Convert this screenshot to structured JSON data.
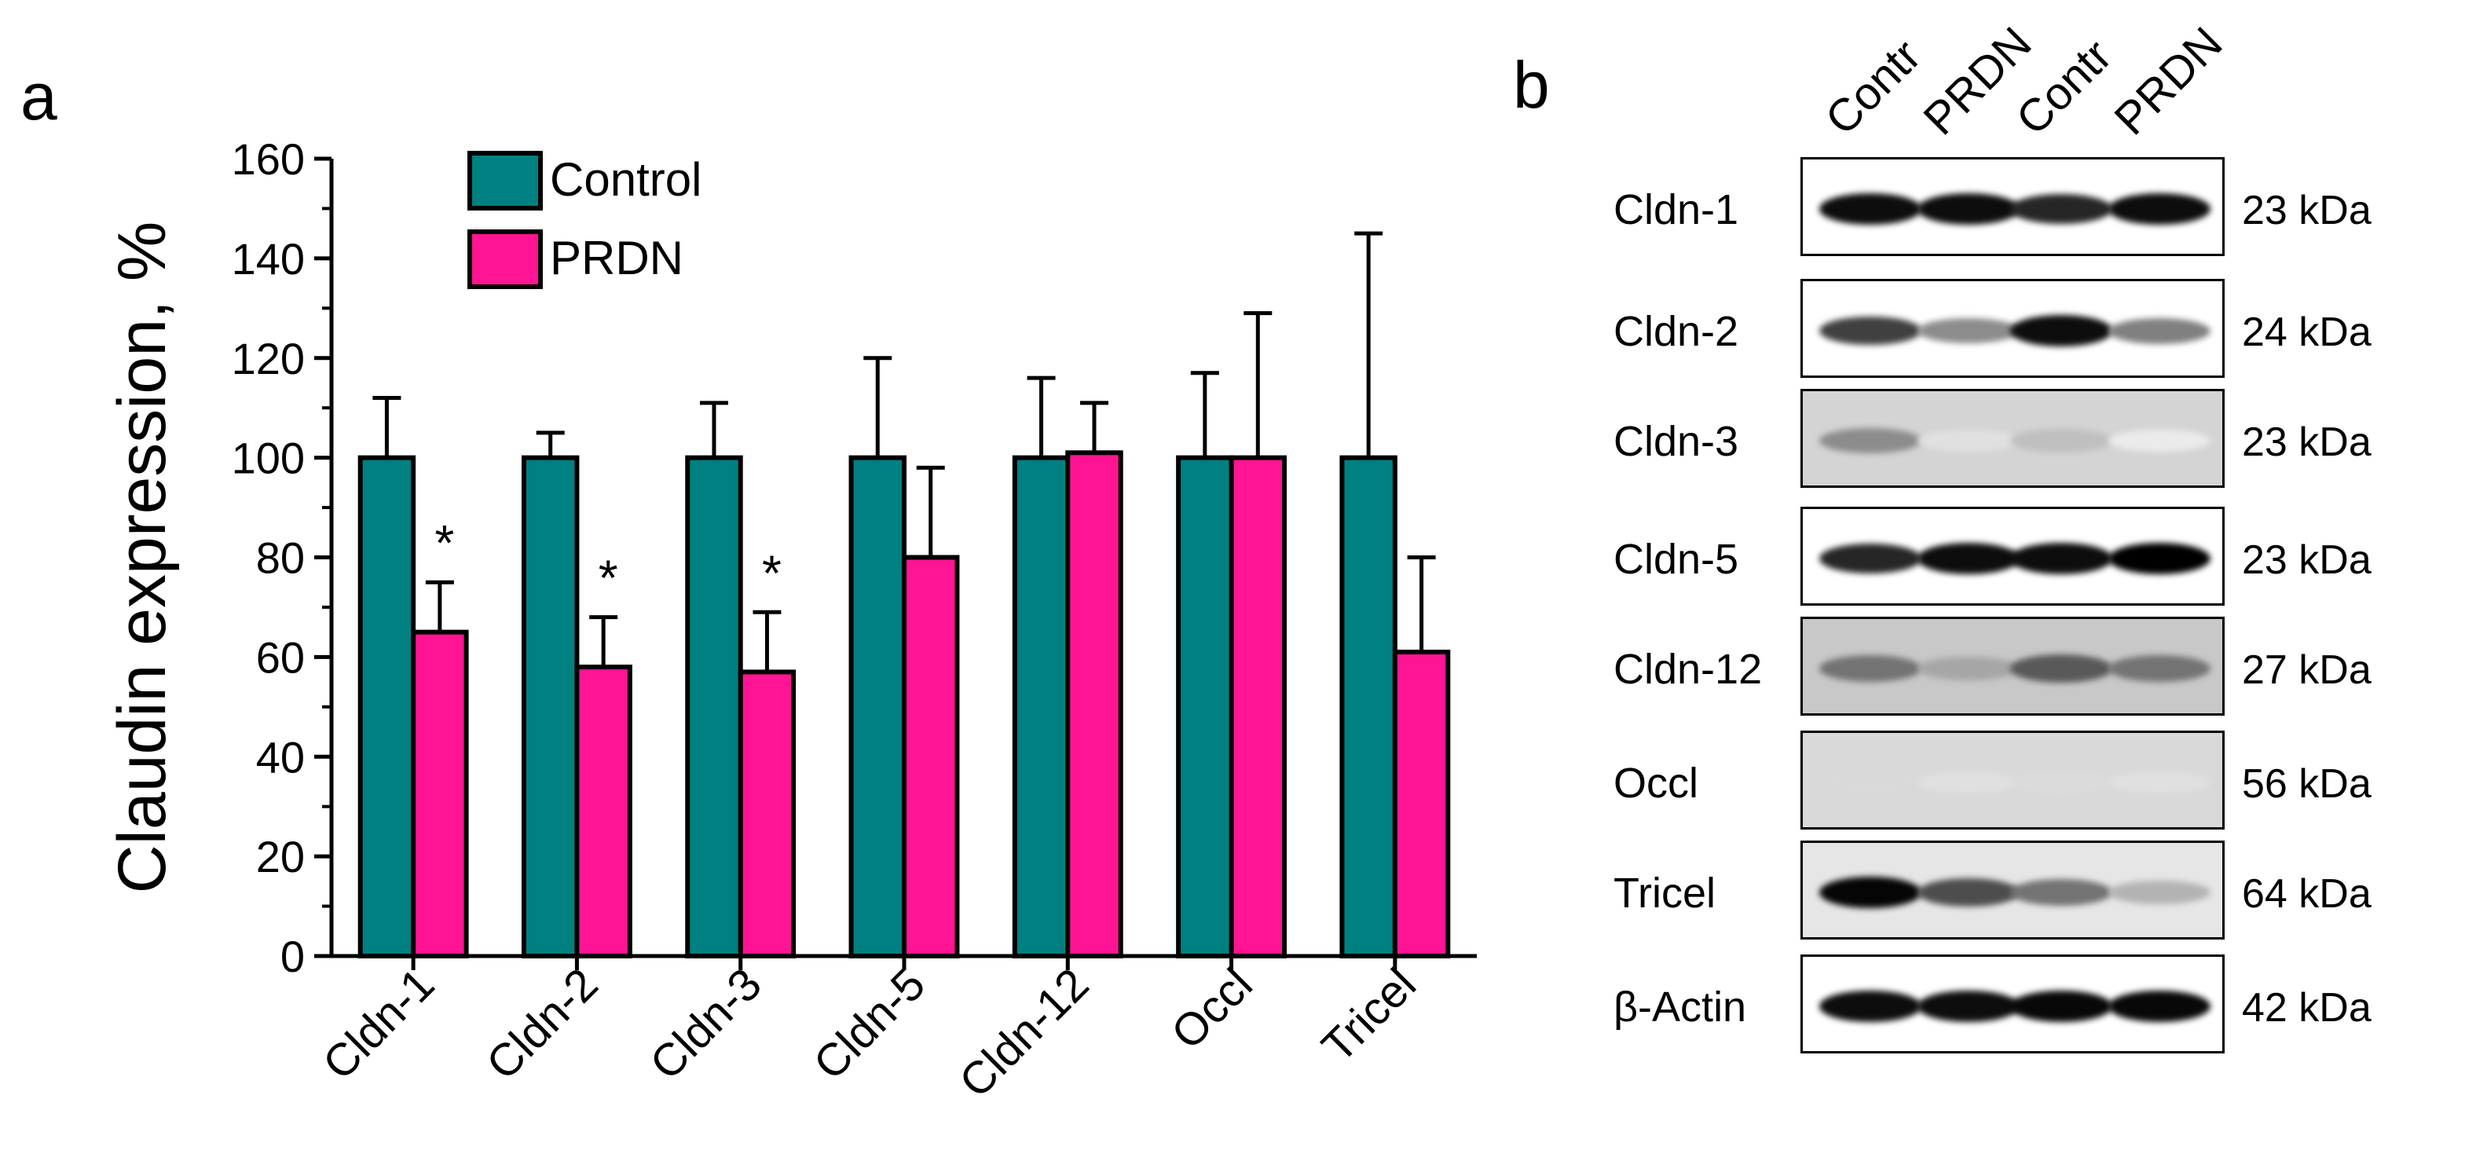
{
  "panel_a": {
    "letter": "a"
  },
  "panel_b": {
    "letter": "b"
  },
  "chart_data": {
    "type": "bar",
    "title": "",
    "xlabel": "",
    "ylabel": "Claudin expression, %",
    "ylim": [
      0,
      160
    ],
    "yticks": [
      0,
      20,
      40,
      60,
      80,
      100,
      120,
      140,
      160
    ],
    "grid": false,
    "legend_position": "top-left",
    "categories": [
      "Cldn-1",
      "Cldn-2",
      "Cldn-3",
      "Cldn-5",
      "Cldn-12",
      "Occl",
      "Tricel"
    ],
    "series": [
      {
        "name": "Control",
        "color": "#008080",
        "values": [
          100,
          100,
          100,
          100,
          100,
          100,
          100
        ],
        "errors": [
          12,
          5,
          11,
          20,
          16,
          17,
          45
        ]
      },
      {
        "name": "PRDN",
        "color": "#ff1493",
        "values": [
          65,
          58,
          57,
          80,
          101,
          100,
          61
        ],
        "errors": [
          10,
          10,
          12,
          18,
          10,
          29,
          19
        ]
      }
    ],
    "annotations": [
      "*",
      "*",
      "*",
      "",
      "",
      "",
      ""
    ]
  },
  "blot": {
    "lanes": [
      "Contr",
      "PRDN",
      "Contr",
      "PRDN"
    ],
    "rows": [
      {
        "name": "Cldn-1",
        "kda": "23 kDa",
        "bg": "#ffffff",
        "intensity": [
          0.95,
          0.95,
          0.85,
          0.95
        ]
      },
      {
        "name": "Cldn-2",
        "kda": "24 kDa",
        "bg": "#ffffff",
        "intensity": [
          0.75,
          0.45,
          0.95,
          0.5
        ]
      },
      {
        "name": "Cldn-3",
        "kda": "23 kDa",
        "bg": "#d4d4d4",
        "intensity": [
          0.45,
          0.12,
          0.25,
          0.08
        ]
      },
      {
        "name": "Cldn-5",
        "kda": "23 kDa",
        "bg": "#ffffff",
        "intensity": [
          0.85,
          0.95,
          0.95,
          1.0
        ]
      },
      {
        "name": "Cldn-12",
        "kda": "27 kDa",
        "bg": "#c8c8c8",
        "intensity": [
          0.55,
          0.35,
          0.65,
          0.55
        ]
      },
      {
        "name": "Occl",
        "kda": "56 kDa",
        "bg": "#d9d9d9",
        "intensity": [
          0.15,
          0.12,
          0.14,
          0.12
        ]
      },
      {
        "name": "Tricel",
        "kda": "64 kDa",
        "bg": "#e6e6e6",
        "intensity": [
          0.98,
          0.7,
          0.55,
          0.3
        ]
      },
      {
        "name": "β-Actin",
        "kda": "42 kDa",
        "bg": "#ffffff",
        "intensity": [
          0.95,
          0.95,
          0.97,
          0.97
        ]
      }
    ]
  }
}
